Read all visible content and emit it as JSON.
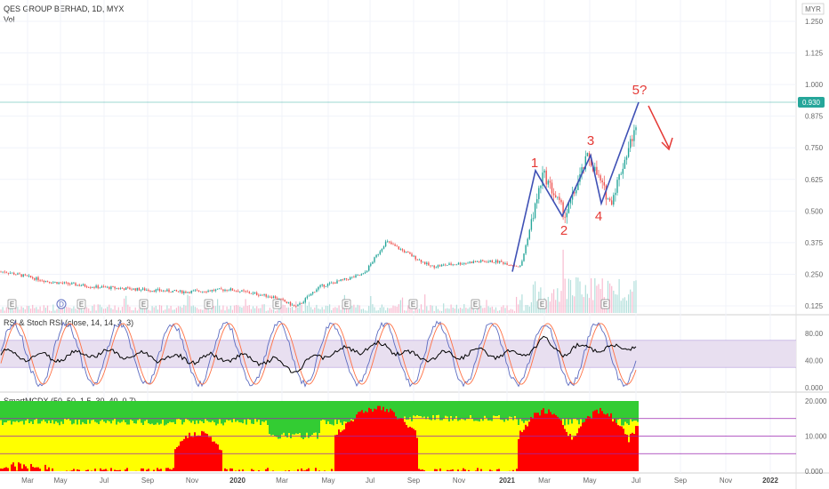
{
  "title": "QES GROUP BERHAD, 1D, MYX",
  "volume_label": "Vol",
  "currency": "MYR",
  "last_price": "0.930",
  "rsi_title": "RSI & Stoch RSI (close, 14, 14, 3, 3)",
  "mcdx_title": "SmartMCDX (50, 50, 1.5, 30, 40, 0.7)",
  "wave_labels": [
    "1",
    "2",
    "3",
    "4",
    "5?"
  ],
  "earnings_marker": "E",
  "dividend_marker": "D",
  "colors": {
    "candle_up": "#26a69a",
    "candle_down": "#ef5350",
    "wave_line": "#3f51b5",
    "arrow": "#e53935",
    "rsi_band": "#e8dff0",
    "mcdx_red": "#ff0000",
    "mcdx_yellow": "#ffff00",
    "mcdx_green": "#33cc33",
    "price_line": "#26a69a"
  },
  "chart_data": [
    {
      "type": "line",
      "title": "QES GROUP BERHAD, 1D, MYX",
      "x_ticks": [
        "Mar",
        "May",
        "Jul",
        "Sep",
        "Nov",
        "2020",
        "Mar",
        "May",
        "Jul",
        "Sep",
        "Nov",
        "2021",
        "Mar",
        "May",
        "Jul",
        "Sep",
        "Nov",
        "2022"
      ],
      "y_ticks": [
        "1.250",
        "1.125",
        "1.000",
        "0.875",
        "0.750",
        "0.625",
        "0.500",
        "0.375",
        "0.250",
        "0.125"
      ],
      "ylim": [
        0.1,
        1.3
      ],
      "x": [
        "2019-02",
        "2019-04",
        "2019-06",
        "2019-08",
        "2019-10",
        "2019-12",
        "2020-02",
        "2020-03",
        "2020-04",
        "2020-06",
        "2020-07",
        "2020-08",
        "2020-09",
        "2020-11",
        "2020-12",
        "2021-01",
        "2021-02",
        "2021-03",
        "2021-04",
        "2021-05",
        "2021-06",
        "2021-07"
      ],
      "series": [
        {
          "values": [
            0.26,
            0.22,
            0.2,
            0.19,
            0.18,
            0.19,
            0.16,
            0.12,
            0.2,
            0.25,
            0.38,
            0.33,
            0.28,
            0.3,
            0.3,
            0.28,
            0.65,
            0.48,
            0.72,
            0.53,
            0.8,
            0.93
          ]
        }
      ],
      "last_value": 0.93
    },
    {
      "type": "line",
      "title": "RSI & Stoch RSI (close, 14, 14, 3, 3)",
      "y_ticks": [
        "80.00",
        "40.00",
        "0.000"
      ],
      "ylim": [
        0,
        100
      ],
      "band": [
        30,
        70
      ],
      "series": [
        {
          "values": [
            50,
            44,
            52,
            47,
            42,
            45,
            38,
            26,
            48,
            58,
            62,
            47,
            45,
            52,
            50,
            48,
            68,
            52,
            62,
            55,
            64,
            68
          ]
        }
      ]
    },
    {
      "type": "area",
      "title": "SmartMCDX (50, 50, 1.5, 30, 40, 0.7)",
      "y_ticks": [
        "20.000",
        "10.000",
        "0.000"
      ],
      "ylim": [
        0,
        20
      ],
      "levels": [
        15,
        10,
        5
      ]
    }
  ]
}
